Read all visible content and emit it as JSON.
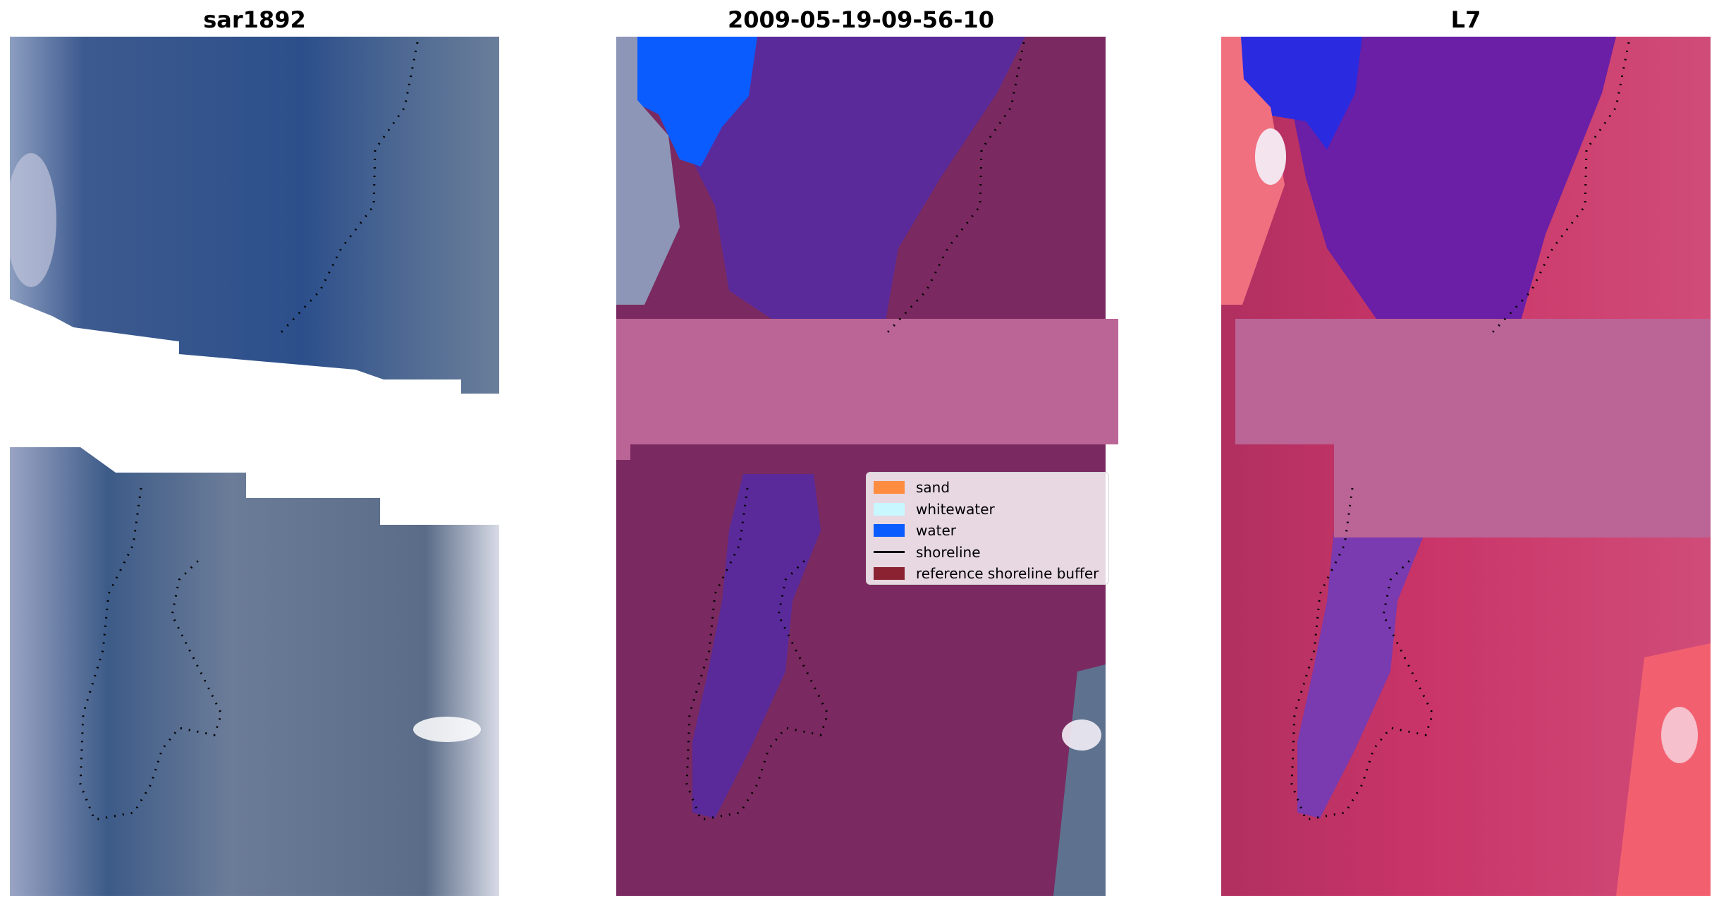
{
  "panels": [
    {
      "title": "sar1892"
    },
    {
      "title": "2009-05-19-09-56-10"
    },
    {
      "title": "L7"
    }
  ],
  "legend": [
    {
      "label": "sand",
      "color": "#ff8c3f",
      "kind": "patch"
    },
    {
      "label": "whitewater",
      "color": "#c8f7ff",
      "kind": "patch"
    },
    {
      "label": "water",
      "color": "#0b5cff",
      "kind": "patch"
    },
    {
      "label": "shoreline",
      "color": "#000000",
      "kind": "line"
    },
    {
      "label": "reference shoreline buffer",
      "color": "#8b2232",
      "kind": "patch"
    }
  ],
  "colors": {
    "rgb_water": "#2f4f86",
    "rgb_land": "#5c7090",
    "classified_water": "#5a2a9a",
    "classified_buffer": "#bb6496",
    "classified_land": "#7a2a60",
    "l7_water": "#6a1fa6",
    "l7_land": "#c8386e",
    "l7_buffer": "#bb6496"
  }
}
